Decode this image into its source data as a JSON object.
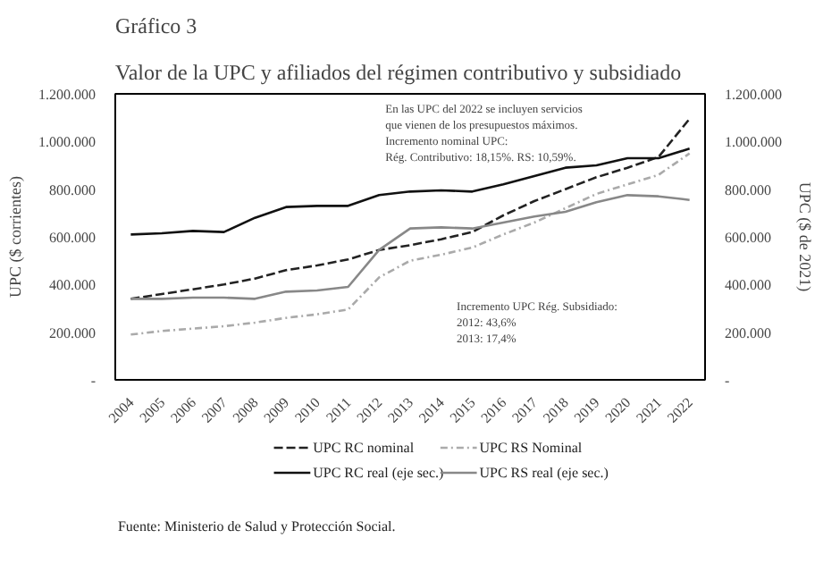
{
  "chart_data": {
    "type": "line",
    "title": "Gráfico 3",
    "subtitle": "Valor de la UPC y afiliados del régimen contributivo y subsidiado",
    "ylabel": "UPC ($ corrientes)",
    "y2label": "UPC ($ de 2021)",
    "categories": [
      "2004",
      "2005",
      "2006",
      "2007",
      "2008",
      "2009",
      "2010",
      "2011",
      "2012",
      "2013",
      "2014",
      "2015",
      "2016",
      "2017",
      "2018",
      "2019",
      "2020",
      "2021",
      "2022"
    ],
    "series": [
      {
        "name": "UPC RC nominal",
        "color": "#222222",
        "line_style": "dashed",
        "values": [
          340000,
          360000,
          380000,
          400000,
          425000,
          460000,
          480000,
          505000,
          545000,
          565000,
          590000,
          620000,
          690000,
          750000,
          800000,
          850000,
          890000,
          935000,
          1095000
        ]
      },
      {
        "name": "UPC RS Nominal",
        "color": "#aaaaaa",
        "line_style": "dotted",
        "values": [
          190000,
          205000,
          215000,
          225000,
          240000,
          260000,
          275000,
          295000,
          430000,
          500000,
          525000,
          555000,
          610000,
          660000,
          720000,
          780000,
          820000,
          860000,
          950000
        ]
      },
      {
        "name": "UPC RC real (eje sec.)",
        "color": "#111111",
        "line_style": "solid",
        "values": [
          610000,
          615000,
          625000,
          620000,
          680000,
          725000,
          730000,
          730000,
          775000,
          790000,
          795000,
          790000,
          820000,
          855000,
          890000,
          900000,
          930000,
          930000,
          970000
        ]
      },
      {
        "name": "UPC RS real (eje sec.)",
        "color": "#888888",
        "line_style": "solid",
        "values": [
          340000,
          340000,
          345000,
          345000,
          340000,
          370000,
          375000,
          390000,
          545000,
          635000,
          640000,
          635000,
          660000,
          685000,
          705000,
          745000,
          775000,
          770000,
          755000
        ]
      }
    ],
    "ylim": [
      0,
      1200000
    ],
    "yticks": [
      {
        "value": 0,
        "label": "-"
      },
      {
        "value": 200000,
        "label": "200.000"
      },
      {
        "value": 400000,
        "label": "400.000"
      },
      {
        "value": 600000,
        "label": "600.000"
      },
      {
        "value": 800000,
        "label": "800.000"
      },
      {
        "value": 1000000,
        "label": "1.000.000"
      },
      {
        "value": 1200000,
        "label": "1.200.000"
      }
    ],
    "y2lim": [
      0,
      1200000
    ],
    "y2ticks": [
      {
        "value": 0,
        "label": "-"
      },
      {
        "value": 200000,
        "label": "200.000"
      },
      {
        "value": 400000,
        "label": "400.000"
      },
      {
        "value": 600000,
        "label": "600.000"
      },
      {
        "value": 800000,
        "label": "800.000"
      },
      {
        "value": 1000000,
        "label": "1.000.000"
      },
      {
        "value": 1200000,
        "label": "1.200.000"
      }
    ],
    "annotations": [
      "En las UPC del 2022 se incluyen servicios\nque vienen de los presupuestos máximos.\nIncremento nominal UPC:\nRég. Contributivo: 18,15%. RS: 10,59%.",
      "Incremento UPC Rég. Subsidiado:\n2012: 43,6%\n2013: 17,4%",
      "Fuente: Ministerio de Salud y Protección Social."
    ],
    "legend": "bottom",
    "grid": false,
    "marker": "none"
  }
}
